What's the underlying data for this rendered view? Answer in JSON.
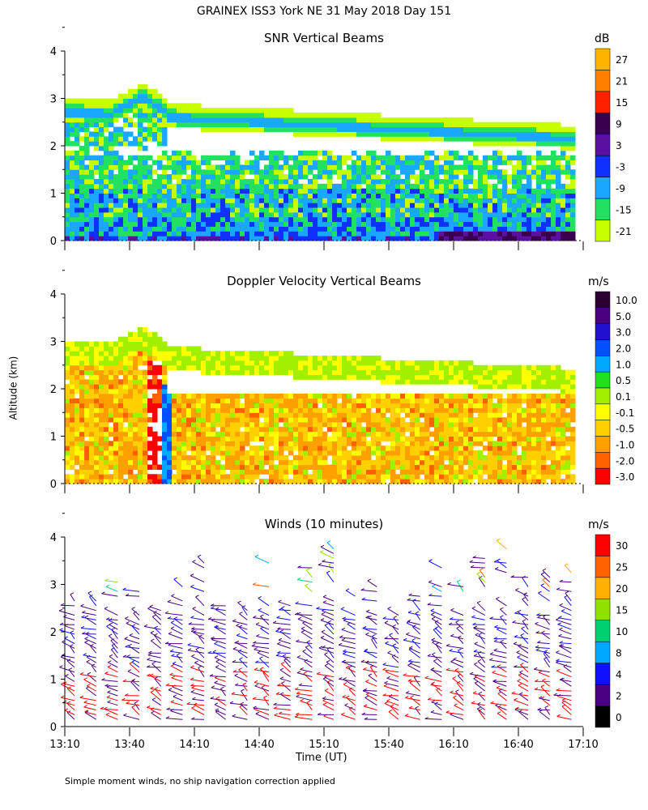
{
  "title": "GRAINEX ISS3 York NE  31 May 2018 Day 151",
  "y_axis_label": "Altitude (km)",
  "x_axis_label": "Time (UT)",
  "footnote": "Simple moment winds, no ship navigation correction applied",
  "x_ticks": [
    "13:10",
    "13:40",
    "14:10",
    "14:40",
    "15:10",
    "15:40",
    "16:10",
    "16:40",
    "17:10"
  ],
  "y_ticks": [
    "0",
    "1",
    "2",
    "3",
    "4"
  ],
  "chart_data": [
    {
      "type": "heatmap",
      "title": "SNR Vertical Beams",
      "units": "dB",
      "xlabel": "Time (UT)",
      "ylabel": "Altitude (km)",
      "x_range": [
        "13:10",
        "17:10"
      ],
      "ylim": [
        0,
        4
      ],
      "colorbar_ticks": [
        "27",
        "21",
        "15",
        "9",
        "3",
        "-3",
        "-9",
        "-15",
        "-21"
      ],
      "colorbar_colors": [
        "#ffb300",
        "#ff8000",
        "#ff2000",
        "#3a0050",
        "#5a10a0",
        "#1030ff",
        "#1aa8ff",
        "#22e060",
        "#c8ff00"
      ],
      "features": {
        "upper_layer_km": [
          2.6,
          3.1
        ],
        "peak_km": 3.4,
        "peak_time": "13:45",
        "strong_low_signal_after": "16:00"
      }
    },
    {
      "type": "heatmap",
      "title": "Doppler Velocity Vertical Beams",
      "units": "m/s",
      "xlabel": "Time (UT)",
      "ylabel": "Altitude (km)",
      "x_range": [
        "13:10",
        "17:10"
      ],
      "ylim": [
        0,
        4
      ],
      "colorbar_ticks": [
        "10.0",
        "5.0",
        "3.0",
        "2.0",
        "1.0",
        "0.5",
        "0.1",
        "-0.1",
        "-0.5",
        "-1.0",
        "-2.0",
        "-3.0"
      ],
      "colorbar_colors": [
        "#2a0030",
        "#4a0080",
        "#2010d0",
        "#0050ff",
        "#00a8ff",
        "#20e020",
        "#a0f000",
        "#ffff00",
        "#ffd000",
        "#ffa000",
        "#ff6000",
        "#ff0000"
      ],
      "features": {
        "dominant_values_m_s": [
          -0.5,
          -1.0
        ],
        "updraft_time": "13:50",
        "updraft_km": [
          0.2,
          2.7
        ]
      }
    },
    {
      "type": "scatter",
      "title": "Winds (10 minutes)",
      "units": "m/s",
      "xlabel": "Time (UT)",
      "ylabel": "Altitude (km)",
      "x_range": [
        "13:10",
        "17:10"
      ],
      "ylim": [
        0,
        4
      ],
      "colorbar_ticks": [
        "30",
        "25",
        "20",
        "15",
        "10",
        "8",
        "4",
        "2",
        "0"
      ],
      "colorbar_colors": [
        "#ff0000",
        "#ff6000",
        "#ffb000",
        "#90e000",
        "#00d070",
        "#00a8ff",
        "#1010ff",
        "#4a0080",
        "#000000"
      ],
      "profile_times": [
        "13:10",
        "13:20",
        "13:30",
        "13:40",
        "13:50",
        "14:00",
        "14:10",
        "14:20",
        "14:30",
        "14:40",
        "14:50",
        "15:00",
        "15:10",
        "15:20",
        "15:30",
        "15:40",
        "15:50",
        "16:00",
        "16:10",
        "16:20",
        "16:30",
        "16:40",
        "16:50",
        "17:00"
      ]
    }
  ]
}
